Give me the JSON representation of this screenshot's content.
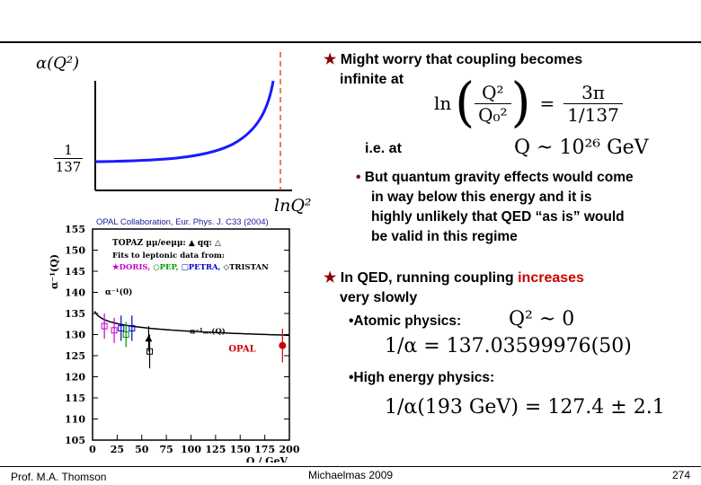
{
  "slide": {
    "footer_left": "Prof. M.A. Thomson",
    "footer_center": "Michaelmas 2009",
    "footer_right": "274"
  },
  "sketch": {
    "y_label": "α(Q²)",
    "tick_num": "1",
    "tick_den": "137",
    "x_label": "lnQ²"
  },
  "bullets": {
    "b1_line1": "Might worry that coupling becomes",
    "b1_line2": "infinite at",
    "f1_ln": "ln",
    "f1_num": "Q²",
    "f1_den": "Q₀²",
    "f1_eq": "=",
    "f1_rnum": "3π",
    "f1_rden": "1/137",
    "ie_at": "i.e. at",
    "f2": "Q ~ 10²⁶ GeV",
    "b2_line1": "But quantum gravity effects would come",
    "b2_line2": "in way below this energy and it is",
    "b2_line3": "highly unlikely that QED “as is” would",
    "b2_line4": "be valid in this regime",
    "b3_line1_a": "In QED, running coupling ",
    "b3_line1_b": "increases",
    "b3_line2": "very slowly",
    "atomic": "•Atomic physics:",
    "f3": "Q² ~ 0",
    "f4": "1/α = 137.03599976(50)",
    "hep": "•High energy physics:",
    "f5": "1/α(193 GeV) = 127.4 ± 2.1"
  },
  "opal": {
    "credit": "OPAL Collaboration, Eur. Phys. J. C33 (2004)",
    "ylabel": "α⁻¹(Q)",
    "xlabel": "Q / GeV",
    "legend1": "TOPAZ μμ/eeμμ: ▲  qq: △",
    "legend2": "Fits to leptonic data from:",
    "legend3_a": "★DORIS,",
    "legend3_b": "○PEP,",
    "legend3_c": "□PETRA,",
    "legend3_d": "◇TRISTAN",
    "alpha0_label": "α⁻¹(0)",
    "alpha_run_label": "α⁻¹ₘₛ(Q)",
    "opal_label": "OPAL",
    "y_ticks": [
      "155",
      "150",
      "145",
      "140",
      "135",
      "130",
      "125",
      "120",
      "115",
      "110",
      "105"
    ],
    "x_ticks": [
      "0",
      "25",
      "50",
      "75",
      "100",
      "125",
      "150",
      "175",
      "200"
    ]
  },
  "chart_data": {
    "type": "scatter",
    "xlabel": "Q / GeV",
    "ylabel": "α⁻¹(Q)",
    "xlim": [
      0,
      200
    ],
    "ylim": [
      105,
      155
    ],
    "points": [
      {
        "x": 12,
        "y": 132
      },
      {
        "x": 22,
        "y": 131
      },
      {
        "x": 29,
        "y": 131.5
      },
      {
        "x": 34,
        "y": 130
      },
      {
        "x": 40,
        "y": 131.5
      },
      {
        "x": 57,
        "y": 129
      },
      {
        "x": 58,
        "y": 126
      },
      {
        "x": 193,
        "y": 127.4
      }
    ]
  }
}
